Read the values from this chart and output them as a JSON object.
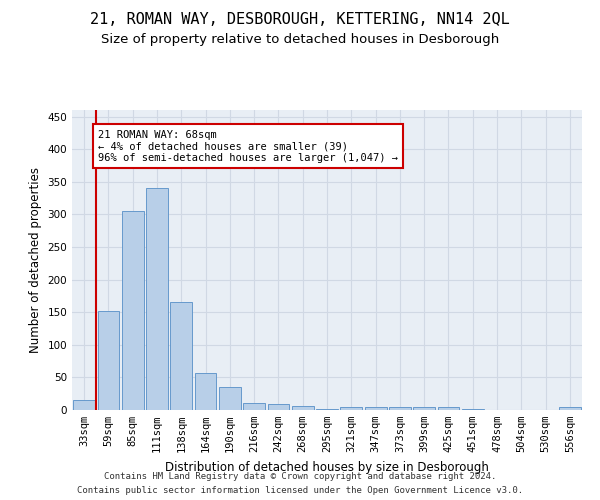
{
  "title1": "21, ROMAN WAY, DESBOROUGH, KETTERING, NN14 2QL",
  "title2": "Size of property relative to detached houses in Desborough",
  "xlabel": "Distribution of detached houses by size in Desborough",
  "ylabel": "Number of detached properties",
  "categories": [
    "33sqm",
    "59sqm",
    "85sqm",
    "111sqm",
    "138sqm",
    "164sqm",
    "190sqm",
    "216sqm",
    "242sqm",
    "268sqm",
    "295sqm",
    "321sqm",
    "347sqm",
    "373sqm",
    "399sqm",
    "425sqm",
    "451sqm",
    "478sqm",
    "504sqm",
    "530sqm",
    "556sqm"
  ],
  "values": [
    15,
    152,
    305,
    340,
    165,
    57,
    35,
    10,
    9,
    6,
    2,
    5,
    5,
    5,
    5,
    5,
    1,
    0,
    0,
    0,
    4
  ],
  "bar_color": "#b8cfe8",
  "bar_edge_color": "#6699cc",
  "vline_color": "#cc0000",
  "annotation_box_text": "21 ROMAN WAY: 68sqm\n← 4% of detached houses are smaller (39)\n96% of semi-detached houses are larger (1,047) →",
  "annotation_box_color": "#cc0000",
  "annotation_bg": "#ffffff",
  "ylim": [
    0,
    460
  ],
  "yticks": [
    0,
    50,
    100,
    150,
    200,
    250,
    300,
    350,
    400,
    450
  ],
  "grid_color": "#d0d8e4",
  "bg_color": "#e8eef5",
  "footer1": "Contains HM Land Registry data © Crown copyright and database right 2024.",
  "footer2": "Contains public sector information licensed under the Open Government Licence v3.0.",
  "title1_fontsize": 11,
  "title2_fontsize": 9.5,
  "axis_label_fontsize": 8.5,
  "tick_fontsize": 7.5,
  "annotation_fontsize": 7.5,
  "footer_fontsize": 6.5
}
